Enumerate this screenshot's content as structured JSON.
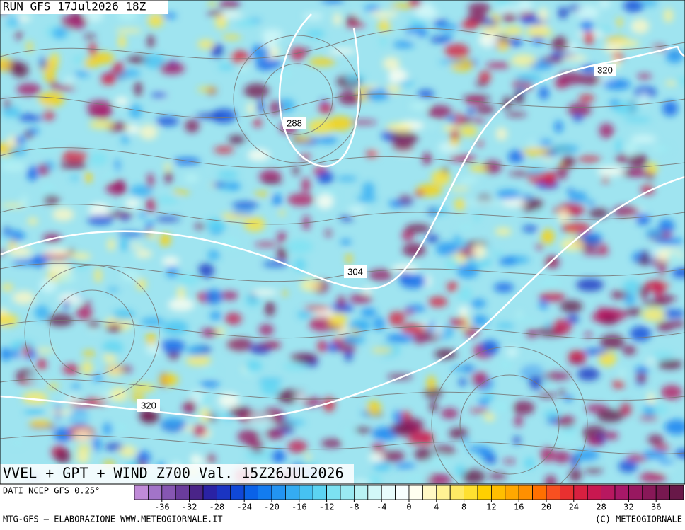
{
  "header": {
    "run": "RUN GFS 17Jul2026 18Z"
  },
  "contour_labels": [
    "288",
    "304",
    "320",
    "320"
  ],
  "footer": {
    "title": "VVEL + GPT + WIND Z700 Val. 15Z26JUL2026",
    "source": "DATI NCEP GFS 0.25°",
    "credit": "MTG-GFS — ELABORAZIONE WWW.METEOGIORNALE.IT",
    "copyright": "(C) METEOGIORNALE"
  },
  "colorbar": {
    "range": [
      -40,
      40
    ],
    "ticks": [
      -36,
      -32,
      -28,
      -24,
      -20,
      -16,
      -12,
      -8,
      -4,
      0,
      4,
      8,
      12,
      16,
      20,
      24,
      28,
      32,
      36
    ],
    "colors": [
      "#c08bd8",
      "#a274c8",
      "#8656b2",
      "#6a3c9c",
      "#4a2488",
      "#2a22a4",
      "#1a34c2",
      "#1048d8",
      "#0a62e8",
      "#127cf0",
      "#2294f2",
      "#34acf2",
      "#46c2f2",
      "#5cd4f2",
      "#7ce2f2",
      "#9aeaf2",
      "#b8f2f4",
      "#d2f8f8",
      "#e8fcfc",
      "#f8ffff",
      "#fffff0",
      "#fff8c4",
      "#fff294",
      "#ffea64",
      "#ffe030",
      "#ffd000",
      "#ffbe00",
      "#ffa800",
      "#ff9000",
      "#ff7000",
      "#f85020",
      "#e83030",
      "#d82040",
      "#c81850",
      "#b81860",
      "#a81868",
      "#981860",
      "#881858",
      "#781850",
      "#681848"
    ]
  }
}
